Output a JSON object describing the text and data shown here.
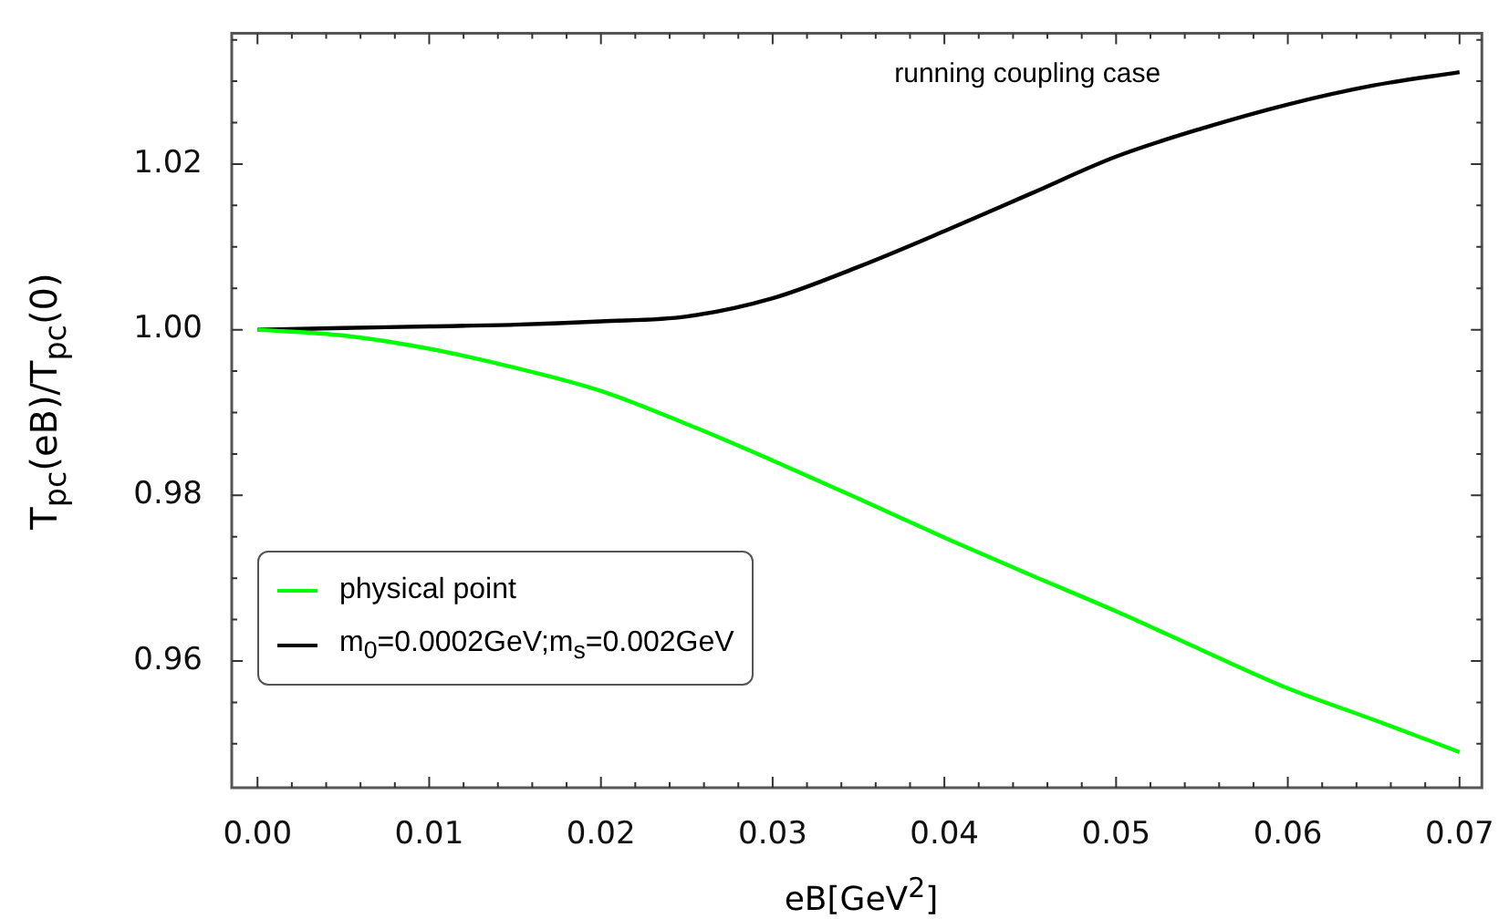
{
  "chart_data": {
    "type": "line",
    "xlabel": "eB[GeV$^{2}$]",
    "ylabel": "T$_{pc}$(eB)/T$_{pc}$(0)",
    "annotations": [
      "running coupling case"
    ],
    "x": [
      0,
      0.005,
      0.01,
      0.015,
      0.02,
      0.025,
      0.03,
      0.035,
      0.04,
      0.045,
      0.05,
      0.055,
      0.06,
      0.065,
      0.07
    ],
    "series": [
      {
        "name": "physical point",
        "color": "#00ff00",
        "values": [
          1.0,
          0.9993,
          0.9977,
          0.9954,
          0.9926,
          0.9886,
          0.9842,
          0.9796,
          0.9749,
          0.9704,
          0.966,
          0.9613,
          0.9567,
          0.9529,
          0.949
        ]
      },
      {
        "name": "m$_{0}$=0.0002GeV;m$_{s}$=0.002GeV",
        "color": "#000000",
        "values": [
          1.0,
          1.0002,
          1.0004,
          1.0006,
          1.001,
          1.0016,
          1.0038,
          1.0076,
          1.0119,
          1.0164,
          1.0209,
          1.0243,
          1.0272,
          1.0295,
          1.0311
        ]
      }
    ],
    "xlim": [
      -0.0015,
      0.0713
    ],
    "ylim": [
      0.9447,
      1.0358
    ],
    "xticks": [
      {
        "value": 0,
        "label": "0.00"
      },
      {
        "value": 0.002,
        "label": null
      },
      {
        "value": 0.004,
        "label": null
      },
      {
        "value": 0.006,
        "label": null
      },
      {
        "value": 0.008,
        "label": null
      },
      {
        "value": 0.01,
        "label": "0.01"
      },
      {
        "value": 0.012,
        "label": null
      },
      {
        "value": 0.014,
        "label": null
      },
      {
        "value": 0.016,
        "label": null
      },
      {
        "value": 0.018,
        "label": null
      },
      {
        "value": 0.02,
        "label": "0.02"
      },
      {
        "value": 0.022,
        "label": null
      },
      {
        "value": 0.024,
        "label": null
      },
      {
        "value": 0.026,
        "label": null
      },
      {
        "value": 0.028,
        "label": null
      },
      {
        "value": 0.03,
        "label": "0.03"
      },
      {
        "value": 0.032,
        "label": null
      },
      {
        "value": 0.034,
        "label": null
      },
      {
        "value": 0.036,
        "label": null
      },
      {
        "value": 0.038,
        "label": null
      },
      {
        "value": 0.04,
        "label": "0.04"
      },
      {
        "value": 0.042,
        "label": null
      },
      {
        "value": 0.044,
        "label": null
      },
      {
        "value": 0.046,
        "label": null
      },
      {
        "value": 0.048,
        "label": null
      },
      {
        "value": 0.05,
        "label": "0.05"
      },
      {
        "value": 0.052,
        "label": null
      },
      {
        "value": 0.054,
        "label": null
      },
      {
        "value": 0.056,
        "label": null
      },
      {
        "value": 0.058,
        "label": null
      },
      {
        "value": 0.06,
        "label": "0.06"
      },
      {
        "value": 0.062,
        "label": null
      },
      {
        "value": 0.064,
        "label": null
      },
      {
        "value": 0.066,
        "label": null
      },
      {
        "value": 0.068,
        "label": null
      },
      {
        "value": 0.07,
        "label": "0.07"
      }
    ],
    "yticks": [
      {
        "value": 0.95,
        "label": null
      },
      {
        "value": 0.955,
        "label": null
      },
      {
        "value": 0.96,
        "label": "0.96"
      },
      {
        "value": 0.965,
        "label": null
      },
      {
        "value": 0.97,
        "label": null
      },
      {
        "value": 0.975,
        "label": null
      },
      {
        "value": 0.98,
        "label": "0.98"
      },
      {
        "value": 0.985,
        "label": null
      },
      {
        "value": 0.99,
        "label": null
      },
      {
        "value": 0.995,
        "label": null
      },
      {
        "value": 1.0,
        "label": "1.00"
      },
      {
        "value": 1.005,
        "label": null
      },
      {
        "value": 1.01,
        "label": null
      },
      {
        "value": 1.015,
        "label": null
      },
      {
        "value": 1.02,
        "label": "1.02"
      },
      {
        "value": 1.025,
        "label": null
      },
      {
        "value": 1.03,
        "label": null
      },
      {
        "value": 1.035,
        "label": null
      }
    ],
    "legend": "bottom left",
    "marker": "none",
    "line_style": "solid",
    "grid": false
  }
}
